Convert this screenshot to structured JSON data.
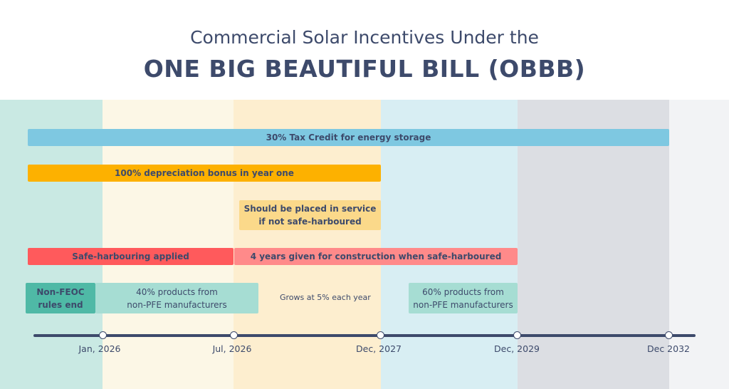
{
  "title": {
    "line1": "Commercial Solar Incentives Under the",
    "line2": "ONE BIG BEAUTIFUL BILL (OBBB)"
  },
  "colors": {
    "band_pre_2026": "#c9e9e3",
    "band_h1_2026": "#fcf7e6",
    "band_to_2027": "#fdeecf",
    "band_to_2029": "#d8eef3",
    "band_to_2032": "#dcdee3",
    "band_after": "#f2f3f5",
    "storage": "#7ec8e1",
    "depreciation": "#fdb100",
    "placed_in_service": "#fbd98a",
    "safe_harbour": "#ff5a5c",
    "construction": "#ff8a8a",
    "feoc_end": "#4fb9a6",
    "pfe": "#a6ddd3",
    "text": "#3d4a6b"
  },
  "bars": {
    "storage": "30% Tax Credit for energy storage",
    "depreciation": "100% depreciation bonus in year one",
    "placed_in_service": [
      "Should be placed in service",
      "if not safe-harboured"
    ],
    "safe_harbour": "Safe-harbouring applied",
    "construction": "4 years given for construction when safe-harboured",
    "feoc_end": [
      "Non-FEOC",
      "rules end"
    ],
    "pfe_40": [
      "40% products from",
      "non-PFE manufacturers"
    ],
    "growth_note": "Grows at 5% each year",
    "pfe_60": [
      "60% products from",
      "non-PFE manufacturers"
    ]
  },
  "timeline": [
    "Jan, 2026",
    "Jul, 2026",
    "Dec, 2027",
    "Dec, 2029",
    "Dec 2032"
  ]
}
